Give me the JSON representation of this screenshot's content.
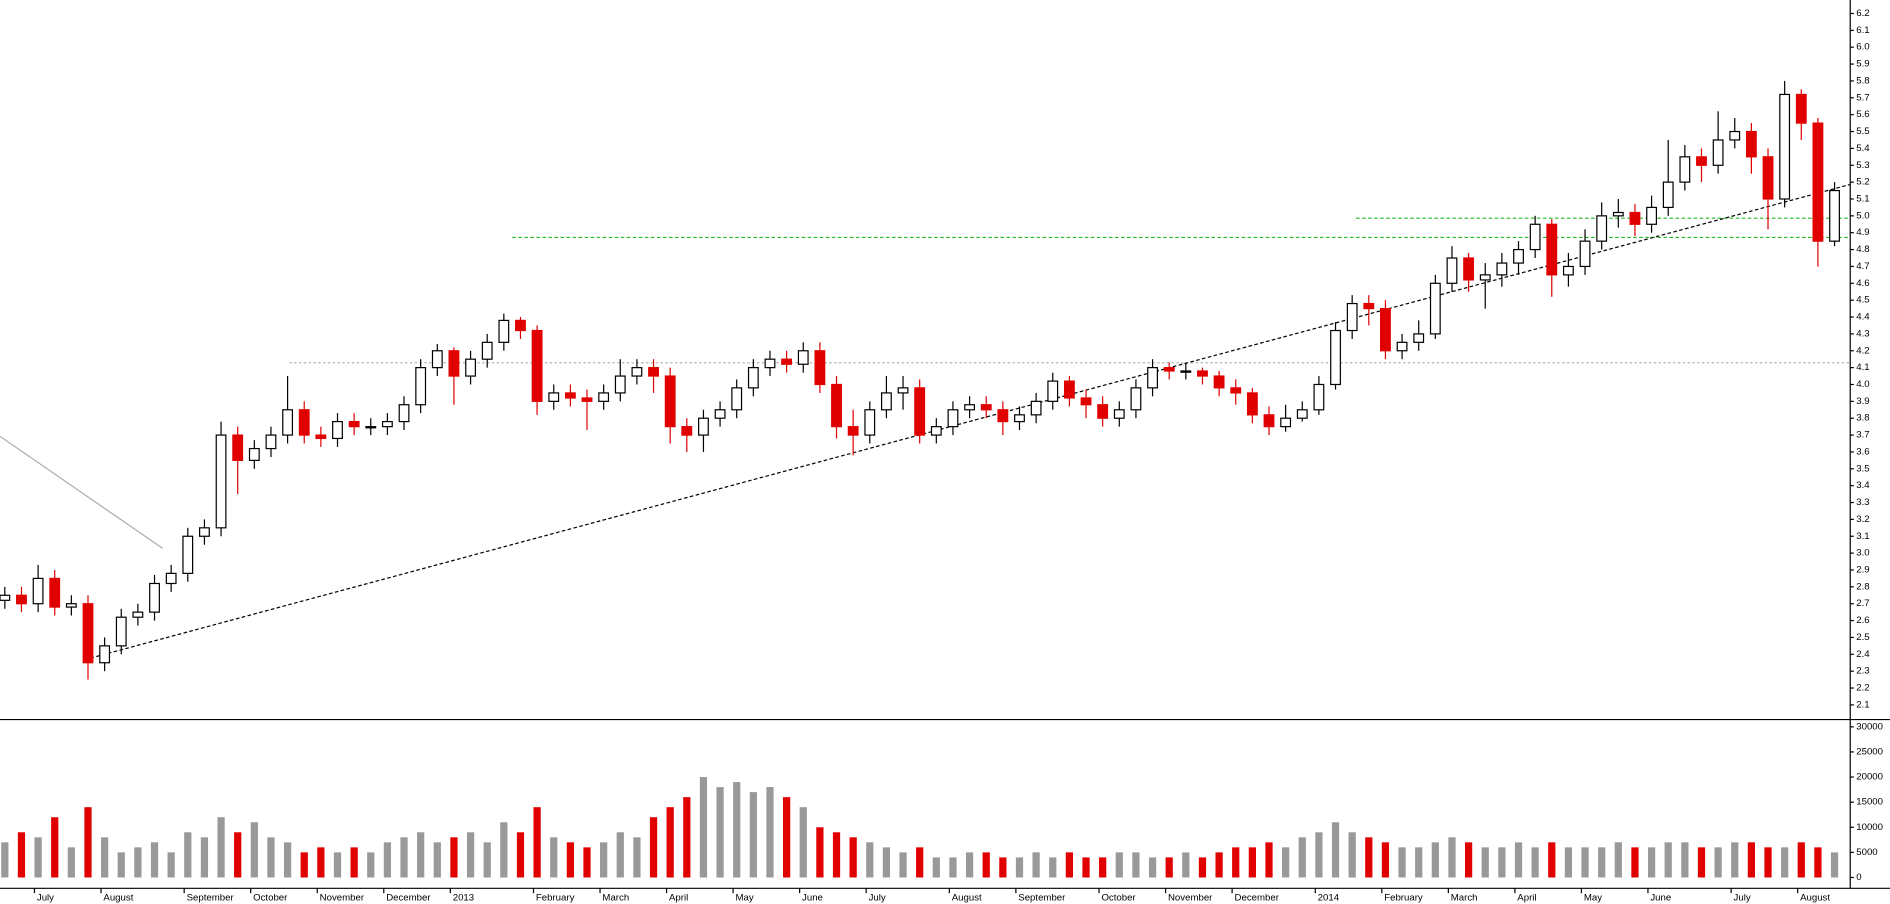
{
  "chart_data": [
    {
      "type": "candlestick",
      "categories": [
        null,
        null,
        "July",
        null,
        null,
        null,
        "August",
        null,
        null,
        null,
        null,
        "September",
        null,
        null,
        null,
        "October",
        null,
        null,
        null,
        "November",
        null,
        null,
        null,
        "December",
        null,
        null,
        null,
        "2013",
        null,
        null,
        null,
        null,
        "February",
        null,
        null,
        null,
        "March",
        null,
        null,
        null,
        "April",
        null,
        null,
        null,
        "May",
        null,
        null,
        null,
        "June",
        null,
        null,
        null,
        "July",
        null,
        null,
        null,
        null,
        "August",
        null,
        null,
        null,
        "September",
        null,
        null,
        null,
        null,
        "October",
        null,
        null,
        null,
        "November",
        null,
        null,
        null,
        "December",
        null,
        null,
        null,
        null,
        "2014",
        null,
        null,
        null,
        "February",
        null,
        null,
        null,
        "March",
        null,
        null,
        null,
        "April",
        null,
        null,
        null,
        "May",
        null,
        null,
        null,
        "June",
        null,
        null,
        null,
        null,
        "July",
        null,
        null,
        null,
        "August",
        null,
        null
      ],
      "open": [
        2.72,
        2.75,
        2.7,
        2.85,
        2.68,
        2.7,
        2.35,
        2.45,
        2.62,
        2.65,
        2.82,
        2.88,
        3.1,
        3.15,
        3.7,
        3.55,
        3.62,
        3.7,
        3.85,
        3.7,
        3.68,
        3.78,
        3.75,
        3.75,
        3.78,
        3.88,
        4.1,
        4.2,
        4.05,
        4.15,
        4.25,
        4.38,
        4.32,
        3.9,
        3.95,
        3.92,
        3.9,
        3.95,
        4.05,
        4.1,
        4.05,
        3.75,
        3.7,
        3.8,
        3.85,
        3.98,
        4.1,
        4.15,
        4.12,
        4.2,
        4.0,
        3.75,
        3.7,
        3.85,
        3.95,
        3.98,
        3.7,
        3.75,
        3.85,
        3.88,
        3.85,
        3.78,
        3.82,
        3.9,
        4.02,
        3.92,
        3.88,
        3.8,
        3.85,
        3.98,
        4.1,
        4.08,
        4.08,
        4.05,
        3.98,
        3.95,
        3.82,
        3.75,
        3.8,
        3.85,
        4.0,
        4.32,
        4.48,
        4.45,
        4.2,
        4.25,
        4.3,
        4.6,
        4.75,
        4.62,
        4.65,
        4.72,
        4.8,
        4.95,
        4.65,
        4.7,
        4.85,
        5.0,
        5.02,
        4.95,
        5.05,
        5.2,
        5.35,
        5.3,
        5.45,
        5.5,
        5.35,
        5.1,
        5.72,
        5.55,
        4.85
      ],
      "high": [
        2.8,
        2.8,
        2.93,
        2.9,
        2.75,
        2.75,
        2.5,
        2.67,
        2.7,
        2.87,
        2.93,
        3.15,
        3.2,
        3.78,
        3.75,
        3.67,
        3.75,
        4.05,
        3.9,
        3.75,
        3.83,
        3.83,
        3.8,
        3.83,
        3.93,
        4.15,
        4.24,
        4.22,
        4.2,
        4.3,
        4.42,
        4.4,
        4.35,
        4.0,
        4.0,
        3.97,
        4.0,
        4.15,
        4.15,
        4.15,
        4.1,
        3.8,
        3.85,
        3.9,
        4.03,
        4.15,
        4.2,
        4.2,
        4.25,
        4.25,
        4.05,
        3.85,
        3.9,
        4.05,
        4.05,
        4.03,
        3.8,
        3.9,
        3.93,
        3.93,
        3.9,
        3.87,
        3.95,
        4.07,
        4.05,
        3.97,
        3.93,
        3.9,
        4.03,
        4.15,
        4.13,
        4.13,
        4.1,
        4.08,
        4.03,
        3.98,
        3.87,
        3.88,
        3.9,
        4.05,
        4.37,
        4.53,
        4.53,
        4.5,
        4.3,
        4.38,
        4.65,
        4.82,
        4.78,
        4.72,
        4.78,
        4.85,
        5.0,
        4.98,
        4.78,
        4.92,
        5.08,
        5.1,
        5.07,
        5.12,
        5.45,
        5.42,
        5.4,
        5.62,
        5.58,
        5.55,
        5.4,
        5.8,
        5.75,
        5.58,
        5.2
      ],
      "low": [
        2.67,
        2.65,
        2.65,
        2.63,
        2.63,
        2.25,
        2.3,
        2.4,
        2.57,
        2.6,
        2.77,
        2.83,
        3.05,
        3.1,
        3.35,
        3.5,
        3.57,
        3.65,
        3.65,
        3.63,
        3.63,
        3.7,
        3.7,
        3.7,
        3.73,
        3.83,
        4.05,
        3.88,
        4.0,
        4.1,
        4.2,
        4.27,
        3.82,
        3.85,
        3.87,
        3.73,
        3.85,
        3.9,
        4.0,
        3.95,
        3.65,
        3.6,
        3.6,
        3.75,
        3.8,
        3.93,
        4.05,
        4.07,
        4.07,
        3.95,
        3.68,
        3.58,
        3.65,
        3.8,
        3.85,
        3.65,
        3.65,
        3.7,
        3.8,
        3.8,
        3.7,
        3.73,
        3.77,
        3.85,
        3.87,
        3.8,
        3.75,
        3.75,
        3.8,
        3.93,
        4.03,
        4.03,
        4.0,
        3.93,
        3.88,
        3.77,
        3.7,
        3.72,
        3.78,
        3.82,
        3.97,
        4.27,
        4.35,
        4.15,
        4.15,
        4.2,
        4.27,
        4.55,
        4.55,
        4.45,
        4.58,
        4.65,
        4.75,
        4.52,
        4.58,
        4.65,
        4.8,
        4.93,
        4.88,
        4.9,
        5.0,
        5.15,
        5.2,
        5.25,
        5.4,
        5.25,
        4.92,
        5.05,
        5.45,
        4.7,
        4.82
      ],
      "close": [
        2.75,
        2.7,
        2.85,
        2.68,
        2.7,
        2.35,
        2.45,
        2.62,
        2.65,
        2.82,
        2.88,
        3.1,
        3.15,
        3.7,
        3.55,
        3.62,
        3.7,
        3.85,
        3.7,
        3.68,
        3.78,
        3.75,
        3.75,
        3.78,
        3.88,
        4.1,
        4.2,
        4.05,
        4.15,
        4.25,
        4.38,
        4.32,
        3.9,
        3.95,
        3.92,
        3.9,
        3.95,
        4.05,
        4.1,
        4.05,
        3.75,
        3.7,
        3.8,
        3.85,
        3.98,
        4.1,
        4.15,
        4.12,
        4.2,
        4.0,
        3.75,
        3.7,
        3.85,
        3.95,
        3.98,
        3.7,
        3.75,
        3.85,
        3.88,
        3.85,
        3.78,
        3.82,
        3.9,
        4.02,
        3.92,
        3.88,
        3.8,
        3.85,
        3.98,
        4.1,
        4.08,
        4.08,
        4.05,
        3.98,
        3.95,
        3.82,
        3.75,
        3.8,
        3.85,
        4.0,
        4.32,
        4.48,
        4.45,
        4.2,
        4.25,
        4.3,
        4.6,
        4.75,
        4.62,
        4.65,
        4.72,
        4.8,
        4.95,
        4.65,
        4.7,
        4.85,
        5.0,
        5.02,
        4.95,
        5.05,
        5.2,
        5.35,
        5.3,
        5.45,
        5.5,
        5.35,
        5.1,
        5.72,
        5.55,
        4.85,
        5.15
      ],
      "up_color": "#000000",
      "down_color": "#e00000",
      "ylim": [
        2.02,
        6.28
      ],
      "yticks": [
        2.1,
        2.2,
        2.3,
        2.4,
        2.5,
        2.6,
        2.7,
        2.8,
        2.9,
        {
          "value": 3,
          "label": "3.0"
        },
        3.1,
        3.2,
        3.3,
        3.4,
        3.5,
        3.6,
        3.7,
        3.8,
        3.9,
        {
          "value": 4,
          "label": "4.0"
        },
        4.1,
        4.2,
        4.3,
        4.4,
        4.5,
        4.6,
        4.7,
        4.8,
        4.9,
        {
          "value": 5,
          "label": "5.0"
        },
        5.1,
        5.2,
        5.3,
        5.4,
        5.5,
        5.6,
        5.7,
        5.8,
        5.9,
        {
          "value": 6,
          "label": "6.0"
        },
        6.1,
        6.2
      ]
    },
    {
      "type": "bar",
      "values": [
        7000,
        9000,
        8000,
        12000,
        6000,
        14000,
        8000,
        5000,
        6000,
        7000,
        5000,
        9000,
        8000,
        12000,
        9000,
        11000,
        8000,
        7000,
        5000,
        6000,
        5000,
        6000,
        5000,
        7000,
        8000,
        9000,
        7000,
        8000,
        9000,
        7000,
        11000,
        9000,
        14000,
        8000,
        7000,
        6000,
        7000,
        9000,
        8000,
        12000,
        14000,
        16000,
        20000,
        18000,
        19000,
        17000,
        18000,
        16000,
        14000,
        10000,
        9000,
        8000,
        7000,
        6000,
        5000,
        6000,
        4000,
        4000,
        5000,
        5000,
        4000,
        4000,
        5000,
        4000,
        5000,
        4000,
        4000,
        5000,
        5000,
        4000,
        4000,
        5000,
        4000,
        5000,
        6000,
        6000,
        7000,
        6000,
        8000,
        9000,
        11000,
        9000,
        8000,
        7000,
        6000,
        6000,
        7000,
        8000,
        7000,
        6000,
        6000,
        7000,
        6000,
        7000,
        6000,
        6000,
        6000,
        7000,
        6000,
        6000,
        7000,
        7000,
        6000,
        6000,
        7000,
        7000,
        6000,
        6000,
        7000,
        6000,
        5000
      ],
      "color": "#999999",
      "down_color": "#e00000",
      "ylim": [
        0,
        31200
      ],
      "yticks": [
        0,
        5000,
        10000,
        15000,
        20000,
        25000,
        30000
      ]
    }
  ]
}
